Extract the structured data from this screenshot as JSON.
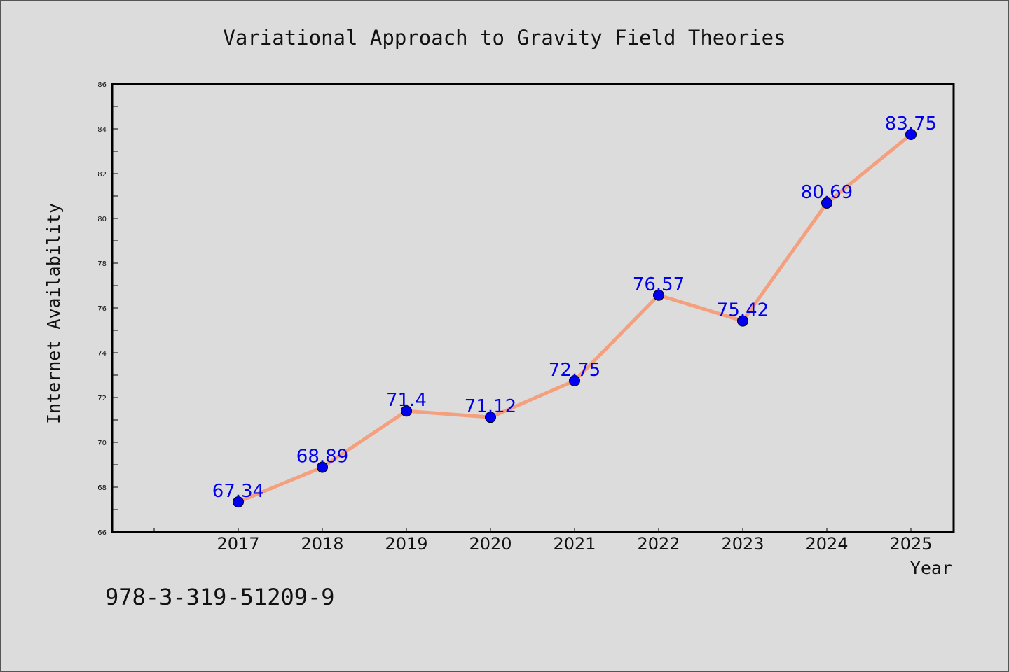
{
  "chart_data": {
    "type": "line",
    "title": "Variational Approach to Gravity Field Theories",
    "xlabel": "Year",
    "ylabel": "Internet Availability",
    "categories": [
      "2017",
      "2018",
      "2019",
      "2020",
      "2021",
      "2022",
      "2023",
      "2024",
      "2025"
    ],
    "values": [
      67.34,
      68.89,
      71.4,
      71.12,
      72.75,
      76.57,
      75.42,
      80.69,
      83.75
    ],
    "data_labels": [
      "67.34",
      "68.89",
      "71.4",
      "71.12",
      "72.75",
      "76.57",
      "75.42",
      "80.69",
      "83.75"
    ],
    "ylim": [
      66,
      86
    ],
    "yticks": [
      66,
      68,
      70,
      72,
      74,
      76,
      78,
      80,
      82,
      84,
      86
    ],
    "grid": false,
    "legend": "none",
    "colors": {
      "line": "#f4a07e",
      "marker": "#0000ee",
      "data_label": "#0000ee",
      "axes": "#000000",
      "background": "#dcdcdc"
    }
  },
  "footer_text": "978-3-319-51209-9"
}
